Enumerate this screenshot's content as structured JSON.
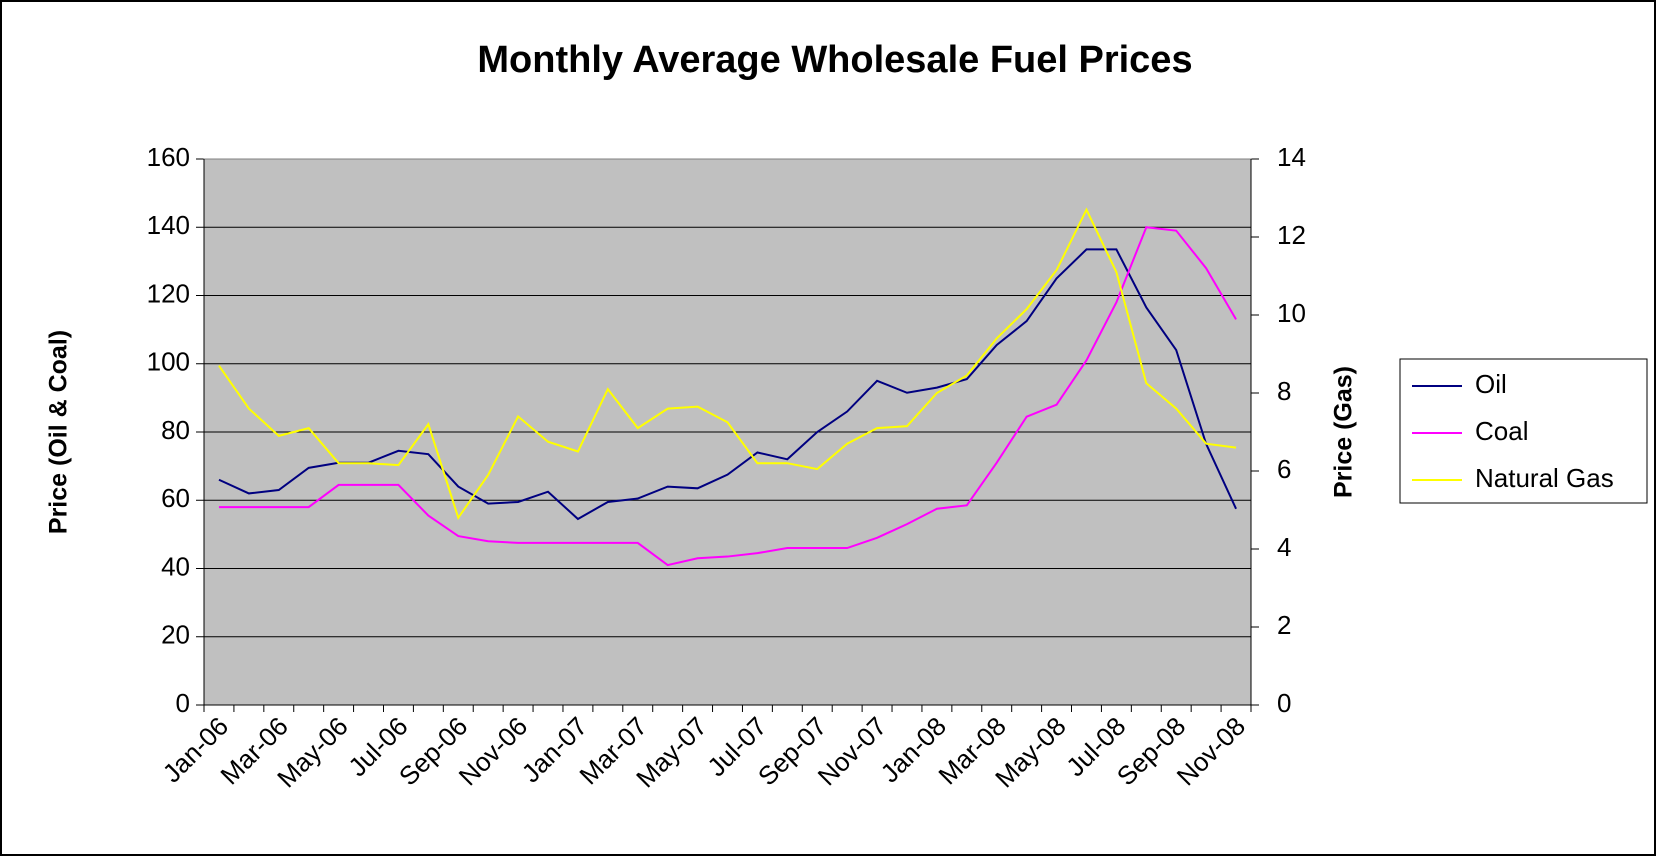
{
  "chart_data": {
    "type": "line",
    "title": "Monthly Average Wholesale Fuel Prices",
    "y_label": "Price (Oil & Coal)",
    "y2_label": "Price (Gas)",
    "categories": [
      "Jan-06",
      null,
      "Mar-06",
      null,
      "May-06",
      null,
      "Jul-06",
      null,
      "Sep-06",
      null,
      "Nov-06",
      null,
      "Jan-07",
      null,
      "Mar-07",
      null,
      "May-07",
      null,
      "Jul-07",
      null,
      "Sep-07",
      null,
      "Nov-07",
      null,
      "Jan-08",
      null,
      "Mar-08",
      null,
      "May-08",
      null,
      "Jul-08",
      null,
      "Sep-08",
      null,
      "Nov-08"
    ],
    "series": [
      {
        "name": "Oil",
        "color": "#000080",
        "values": [
          66,
          62,
          63,
          69.5,
          71,
          71,
          74.5,
          73.5,
          64,
          59,
          59.5,
          62.5,
          54.5,
          59.5,
          60.5,
          64,
          63.5,
          67.5,
          74,
          72,
          80,
          86,
          95,
          91.5,
          93,
          95.5,
          105.5,
          112.5,
          125,
          133.5,
          133.5,
          116.5,
          104,
          76.5,
          57.5
        ]
      },
      {
        "name": "Coal",
        "color": "#ff00ff",
        "values": [
          58,
          58,
          58,
          58,
          64.5,
          64.5,
          64.5,
          55.5,
          49.5,
          48,
          47.5,
          47.5,
          47.5,
          47.5,
          47.5,
          41,
          43,
          43.5,
          44.5,
          46,
          46,
          46,
          49,
          53,
          57.5,
          58.5,
          71,
          84.5,
          88,
          101,
          118,
          140,
          139,
          128,
          113
        ]
      },
      {
        "name": "Natural Gas",
        "color": "#ffff00",
        "axis": "y2",
        "values": [
          8.7,
          7.6,
          6.9,
          7.1,
          6.2,
          6.2,
          6.15,
          7.2,
          4.8,
          5.9,
          7.4,
          6.75,
          6.5,
          8.1,
          7.1,
          7.6,
          7.65,
          7.25,
          6.2,
          6.2,
          6.05,
          6.7,
          7.1,
          7.15,
          8.0,
          8.45,
          9.4,
          10.15,
          11.15,
          12.7,
          11.1,
          8.25,
          7.6,
          6.7,
          6.6
        ]
      }
    ],
    "ylim": [
      0,
      160
    ],
    "yticks": [
      0,
      20,
      40,
      60,
      80,
      100,
      120,
      140,
      160
    ],
    "y2lim": [
      0,
      14
    ],
    "y2ticks": [
      0,
      2,
      4,
      6,
      8,
      10,
      12,
      14
    ],
    "grid": true,
    "plot_background": "#c0c0c0",
    "legend": "right"
  }
}
